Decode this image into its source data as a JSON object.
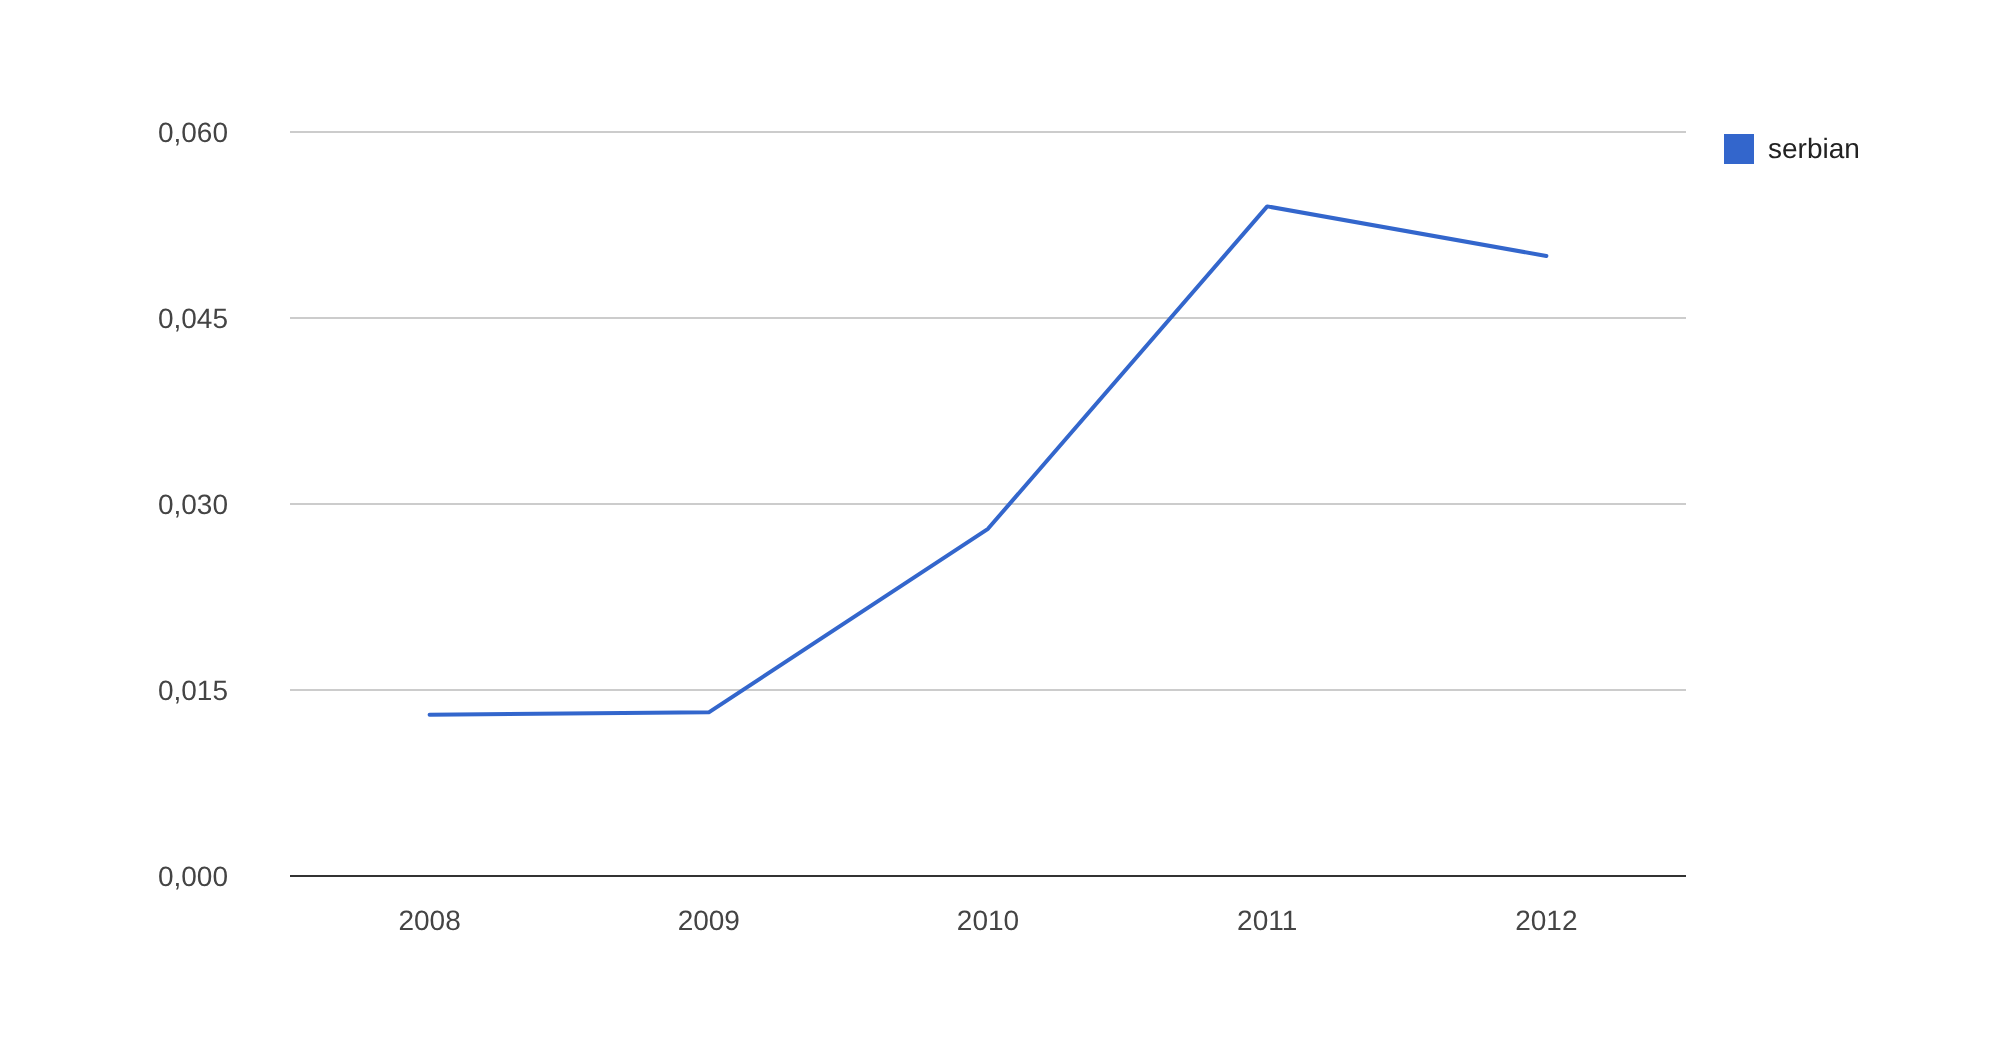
{
  "chart_data": {
    "type": "line",
    "categories": [
      "2008",
      "2009",
      "2010",
      "2011",
      "2012"
    ],
    "series": [
      {
        "name": "serbian",
        "color": "#3366cc",
        "values": [
          0.013,
          0.0132,
          0.028,
          0.054,
          0.05
        ]
      }
    ],
    "ylim": [
      0,
      0.06
    ],
    "yticks": [
      {
        "value": 0,
        "label": "0,000"
      },
      {
        "value": 0.015,
        "label": "0,015"
      },
      {
        "value": 0.03,
        "label": "0,030"
      },
      {
        "value": 0.045,
        "label": "0,045"
      },
      {
        "value": 0.06,
        "label": "0,060"
      }
    ],
    "grid": "y",
    "legend": "top right",
    "marker": "none",
    "line_style": "solid"
  }
}
